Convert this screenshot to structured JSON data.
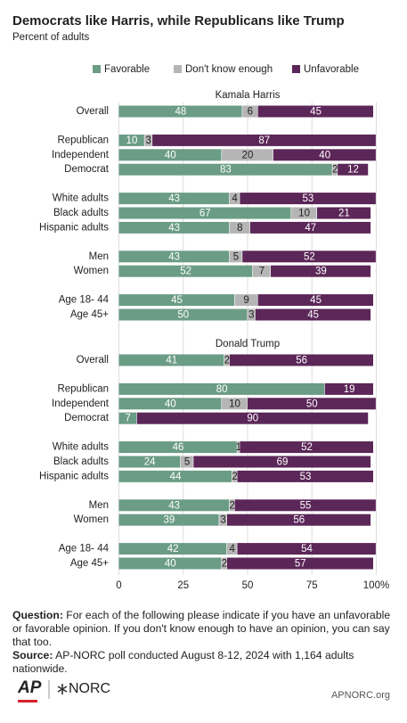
{
  "title": "Democrats like Harris, while Republicans like Trump",
  "subtitle": "Percent of adults",
  "chart_data": [
    {
      "type": "stacked-bar",
      "orientation": "horizontal",
      "panel_title": "Kamala Harris",
      "categories": [
        "Overall",
        "Republican",
        "Independent",
        "Democrat",
        "White adults",
        "Black adults",
        "Hispanic adults",
        "Men",
        "Women",
        "Age 18- 44",
        "Age 45+"
      ],
      "series": [
        {
          "name": "Favorable",
          "color": "#6b9c85",
          "values": [
            48,
            10,
            40,
            83,
            43,
            67,
            43,
            43,
            52,
            45,
            50
          ]
        },
        {
          "name": "Don't know enough",
          "color": "#b5b5b5",
          "values": [
            6,
            3,
            20,
            2,
            4,
            10,
            8,
            5,
            7,
            9,
            3
          ]
        },
        {
          "name": "Unfavorable",
          "color": "#5b2658",
          "values": [
            45,
            87,
            40,
            12,
            53,
            21,
            47,
            52,
            39,
            45,
            45
          ]
        }
      ],
      "xlim": [
        0,
        100
      ]
    },
    {
      "type": "stacked-bar",
      "orientation": "horizontal",
      "panel_title": "Donald Trump",
      "categories": [
        "Overall",
        "Republican",
        "Independent",
        "Democrat",
        "White adults",
        "Black adults",
        "Hispanic adults",
        "Men",
        "Women",
        "Age 18- 44",
        "Age 45+"
      ],
      "series": [
        {
          "name": "Favorable",
          "color": "#6b9c85",
          "values": [
            41,
            80,
            40,
            7,
            46,
            24,
            44,
            43,
            39,
            42,
            40
          ]
        },
        {
          "name": "Don't know enough",
          "color": "#b5b5b5",
          "values": [
            2,
            null,
            10,
            null,
            1,
            5,
            2,
            2,
            3,
            4,
            2
          ]
        },
        {
          "name": "Unfavorable",
          "color": "#5b2658",
          "values": [
            56,
            19,
            50,
            90,
            52,
            69,
            53,
            55,
            56,
            54,
            57
          ]
        }
      ],
      "xlim": [
        0,
        100
      ],
      "xticks": [
        0,
        25,
        50,
        75,
        {
          "value": 100,
          "label": "100%"
        }
      ],
      "grid": true
    }
  ],
  "notes": {
    "question_label": "Question:",
    "question": "For each of the following please indicate if you have an unfavorable or favorable opinion. If you don't know enough to have an opinion, you can say that too.",
    "source_label": "Source:",
    "source": "AP-NORC poll conducted August 8-12, 2024 with 1,164 adults nationwide."
  },
  "footer": {
    "logo_ap": "AP",
    "logo_norc": "NORC",
    "site": "APNORC.org"
  }
}
